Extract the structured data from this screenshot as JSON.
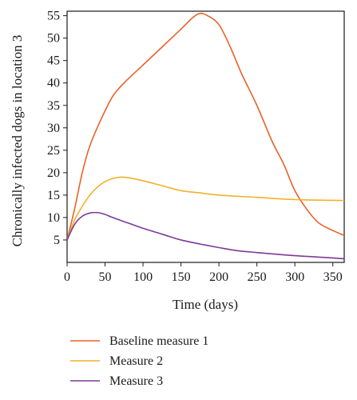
{
  "chart_data": {
    "type": "line",
    "title": "",
    "xlabel": "Time (days)",
    "ylabel": "Chronically infected dogs in location 3",
    "xlim": [
      0,
      365
    ],
    "ylim": [
      0,
      56
    ],
    "x_ticks": [
      0,
      50,
      100,
      150,
      200,
      250,
      300,
      350
    ],
    "y_ticks": [
      5,
      10,
      15,
      20,
      25,
      30,
      35,
      40,
      45,
      50,
      55
    ],
    "grid": false,
    "legend_position": "below",
    "series": [
      {
        "name": "Baseline measure 1",
        "color": "#e8622a",
        "x": [
          0,
          10,
          20,
          30,
          45,
          60,
          75,
          100,
          125,
          150,
          165,
          175,
          185,
          200,
          215,
          230,
          250,
          270,
          285,
          300,
          315,
          330,
          345,
          365
        ],
        "y": [
          5,
          12,
          20,
          26,
          32,
          37,
          40,
          44,
          48,
          52,
          54.5,
          55.5,
          55,
          53,
          48,
          42,
          35,
          27,
          22,
          16,
          12,
          9,
          7.5,
          6
        ]
      },
      {
        "name": "Measure 2",
        "color": "#f3b129",
        "x": [
          0,
          10,
          20,
          30,
          40,
          50,
          60,
          70,
          80,
          100,
          125,
          150,
          175,
          200,
          250,
          300,
          365
        ],
        "y": [
          5,
          9.5,
          12.5,
          15,
          16.8,
          18,
          18.7,
          19,
          18.9,
          18.2,
          17.1,
          16,
          15.5,
          15,
          14.5,
          14,
          13.8
        ]
      },
      {
        "name": "Measure 3",
        "color": "#7b3a97",
        "x": [
          0,
          10,
          20,
          30,
          40,
          50,
          60,
          80,
          100,
          125,
          150,
          175,
          200,
          225,
          250,
          300,
          350,
          365
        ],
        "y": [
          5,
          8.5,
          10.3,
          11,
          11.1,
          10.7,
          10,
          8.8,
          7.6,
          6.3,
          5,
          4.1,
          3.3,
          2.6,
          2.2,
          1.5,
          1,
          0.8
        ]
      }
    ]
  }
}
